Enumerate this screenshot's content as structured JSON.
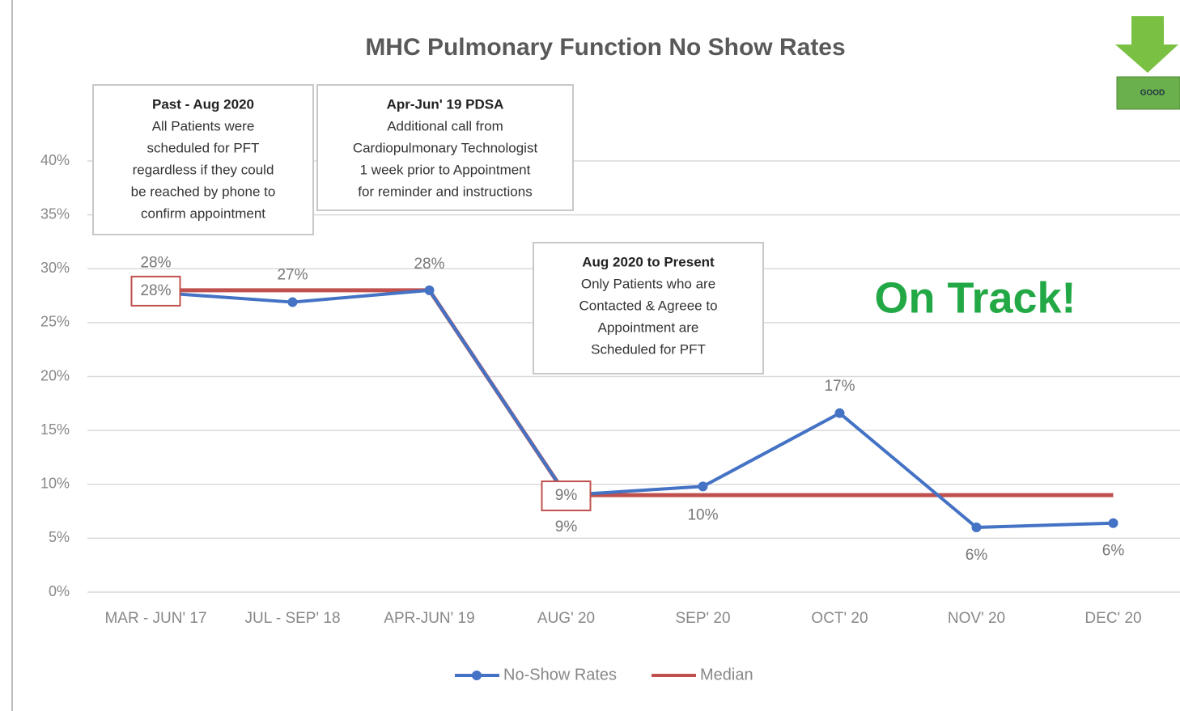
{
  "chart_data": {
    "type": "line",
    "title": "MHC Pulmonary Function No Show Rates",
    "categories": [
      "MAR - JUN' 17",
      "JUL - SEP' 18",
      "APR-JUN' 19",
      "AUG' 20",
      "SEP' 20",
      "OCT' 20",
      "NOV' 20",
      "DEC' 20"
    ],
    "series": [
      {
        "name": "No-Show Rates",
        "color": "#4472c4",
        "values": [
          27.8,
          26.9,
          28,
          9,
          9.8,
          16.6,
          6,
          6.4
        ],
        "value_labels": [
          "28%",
          "27%",
          "28%",
          "9%",
          "10%",
          "17%",
          "6%",
          "6%"
        ]
      },
      {
        "name": "Median",
        "color": "#c0504d",
        "values": [
          28,
          28,
          28,
          9,
          9,
          9,
          9,
          9
        ],
        "value_labels": [
          "28%",
          null,
          null,
          "9%",
          null,
          null,
          null,
          null
        ]
      }
    ],
    "ylim": [
      0,
      40
    ],
    "yticks": [
      {
        "value": 0,
        "label": "0%"
      },
      {
        "value": 5,
        "label": "5%"
      },
      {
        "value": 10,
        "label": "10%"
      },
      {
        "value": 15,
        "label": "15%"
      },
      {
        "value": 20,
        "label": "20%"
      },
      {
        "value": 25,
        "label": "25%"
      },
      {
        "value": 30,
        "label": "30%"
      },
      {
        "value": 35,
        "label": "35%"
      },
      {
        "value": 40,
        "label": "40%"
      }
    ],
    "grid": true,
    "legend": "bottom",
    "annotations": [
      {
        "title": "Past - Aug 2020",
        "lines": [
          "All Patients were",
          "scheduled for PFT",
          "regardless if they could",
          "be reached by phone to",
          "confirm appointment"
        ]
      },
      {
        "title": "Apr-Jun' 19 PDSA",
        "lines": [
          "Additional call from",
          "Cardiopulmonary Technologist",
          "1 week prior to Appointment",
          "for reminder and instructions"
        ]
      },
      {
        "title": "Aug 2020 to Present",
        "lines": [
          "Only Patients who are",
          "Contacted & Agreee to",
          "Appointment are",
          "Scheduled for PFT"
        ]
      }
    ],
    "status": "On Track!",
    "indicator": "GOOD"
  }
}
